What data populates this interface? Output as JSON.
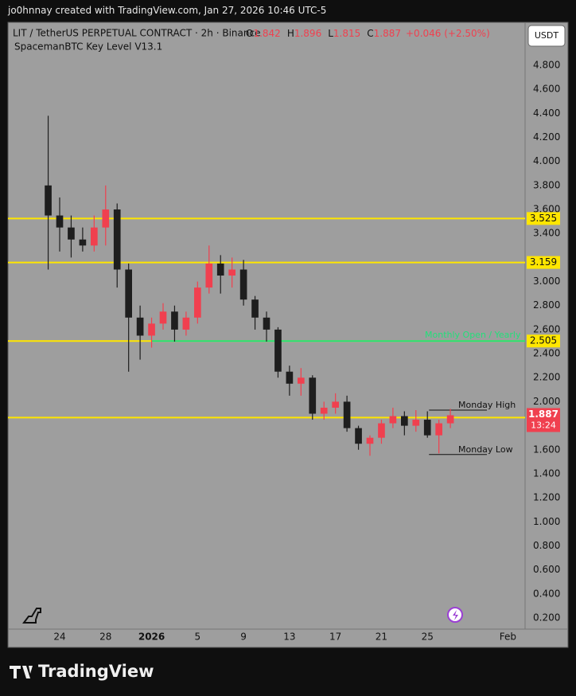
{
  "page": {
    "byline": "jo0hnnay created with TradingView.com, Jan 27, 2026 10:46 UTC-5",
    "brand": "TradingView"
  },
  "chart_data": {
    "type": "candlestick",
    "title": "LIT / TetherUS PERPETUAL CONTRACT · 2h · Binance",
    "legend": [
      {
        "label": "O",
        "value": "1.842"
      },
      {
        "label": "H",
        "value": "1.896"
      },
      {
        "label": "L",
        "value": "1.815"
      },
      {
        "label": "C",
        "value": "1.887"
      }
    ],
    "change": "+0.046 (+2.50%)",
    "indicator": "SpacemanBTC Key Level V13.1",
    "currency": "USDT",
    "countdown": "13:24",
    "categories": [
      null,
      null,
      null,
      null,
      "24",
      null,
      null,
      null,
      "28",
      null,
      null,
      null,
      "2026",
      null,
      null,
      null,
      "5",
      null,
      null,
      null,
      "9",
      null,
      null,
      null,
      "13",
      null,
      null,
      null,
      "17",
      null,
      null,
      null,
      "21",
      null,
      null,
      null,
      "25",
      null,
      null,
      null,
      null,
      null,
      null,
      "Feb",
      null
    ],
    "open": [
      null,
      null,
      null,
      3.8,
      3.55,
      3.45,
      3.35,
      3.3,
      3.45,
      3.6,
      3.1,
      2.7,
      2.55,
      2.65,
      2.75,
      2.6,
      2.7,
      2.95,
      3.15,
      3.05,
      3.1,
      2.85,
      2.7,
      2.6,
      2.25,
      2.15,
      2.2,
      1.9,
      1.95,
      2.0,
      1.78,
      1.65,
      1.7,
      1.82,
      1.88,
      1.8,
      1.85,
      1.72,
      1.82,
      null,
      null,
      null,
      null,
      null,
      null
    ],
    "high": [
      null,
      null,
      null,
      4.38,
      3.7,
      3.55,
      3.45,
      3.55,
      3.8,
      3.65,
      3.15,
      2.8,
      2.7,
      2.82,
      2.8,
      2.75,
      3.0,
      3.3,
      3.22,
      3.2,
      3.18,
      2.88,
      2.75,
      2.62,
      2.3,
      2.28,
      2.22,
      2.0,
      2.07,
      2.05,
      1.8,
      1.72,
      1.85,
      1.95,
      1.92,
      1.93,
      1.92,
      1.85,
      1.94,
      null,
      null,
      null,
      null,
      null,
      null
    ],
    "low": [
      null,
      null,
      null,
      3.1,
      3.25,
      3.2,
      3.25,
      3.25,
      3.3,
      2.95,
      2.25,
      2.35,
      2.45,
      2.6,
      2.5,
      2.55,
      2.65,
      2.9,
      2.9,
      2.95,
      2.8,
      2.6,
      2.5,
      2.2,
      2.05,
      2.05,
      1.85,
      1.85,
      1.9,
      1.75,
      1.6,
      1.55,
      1.65,
      1.78,
      1.72,
      1.75,
      1.7,
      1.57,
      1.78,
      null,
      null,
      null,
      null,
      null,
      null
    ],
    "close": [
      null,
      null,
      null,
      3.55,
      3.45,
      3.35,
      3.3,
      3.45,
      3.6,
      3.1,
      2.7,
      2.55,
      2.65,
      2.75,
      2.6,
      2.7,
      2.95,
      3.15,
      3.05,
      3.1,
      2.85,
      2.7,
      2.6,
      2.25,
      2.15,
      2.2,
      1.9,
      1.95,
      2.0,
      1.78,
      1.65,
      1.7,
      1.82,
      1.88,
      1.8,
      1.85,
      1.72,
      1.82,
      1.887,
      null,
      null,
      null,
      null,
      null,
      null
    ],
    "up_color": "#f0404f",
    "down_color": "#1e1e1e",
    "ylim": [
      0.107,
      5.158
    ],
    "yticks": [
      {
        "value": 0.2,
        "label": "0.200"
      },
      {
        "value": 0.4,
        "label": "0.400"
      },
      {
        "value": 0.6,
        "label": "0.600"
      },
      {
        "value": 0.8,
        "label": "0.800"
      },
      {
        "value": 1,
        "label": "1.000"
      },
      {
        "value": 1.2,
        "label": "1.200"
      },
      {
        "value": 1.4,
        "label": "1.400"
      },
      {
        "value": 1.6,
        "label": "1.600"
      },
      {
        "value": 2,
        "label": "2.000"
      },
      {
        "value": 2.2,
        "label": "2.200"
      },
      {
        "value": 2.4,
        "label": "2.400"
      },
      {
        "value": 2.6,
        "label": "2.600"
      },
      {
        "value": 2.8,
        "label": "2.800"
      },
      {
        "value": 3,
        "label": "3.000"
      },
      {
        "value": 3.4,
        "label": "3.400"
      },
      {
        "value": 3.6,
        "label": "3.600"
      },
      {
        "value": 3.8,
        "label": "3.800"
      },
      {
        "value": 4,
        "label": "4.000"
      },
      {
        "value": 4.2,
        "label": "4.200"
      },
      {
        "value": 4.4,
        "label": "4.400"
      },
      {
        "value": 4.6,
        "label": "4.600"
      },
      {
        "value": 4.8,
        "label": "4.800"
      }
    ],
    "levels": [
      {
        "value": 3.525,
        "color": "#ffe600"
      },
      {
        "value": 3.159,
        "color": "#ffe600"
      },
      {
        "value": 2.505,
        "color": "#ffe600"
      },
      {
        "value": 1.868,
        "color": "#ffe600"
      }
    ],
    "annotations": [
      {
        "text": "Monthly Open / Yearly",
        "value": 2.505,
        "color": "#22e07a"
      },
      {
        "text": "Monday High",
        "value": 1.93,
        "color": "#111111"
      },
      {
        "text": "Monday Low",
        "value": 1.56,
        "color": "#111111"
      }
    ]
  }
}
